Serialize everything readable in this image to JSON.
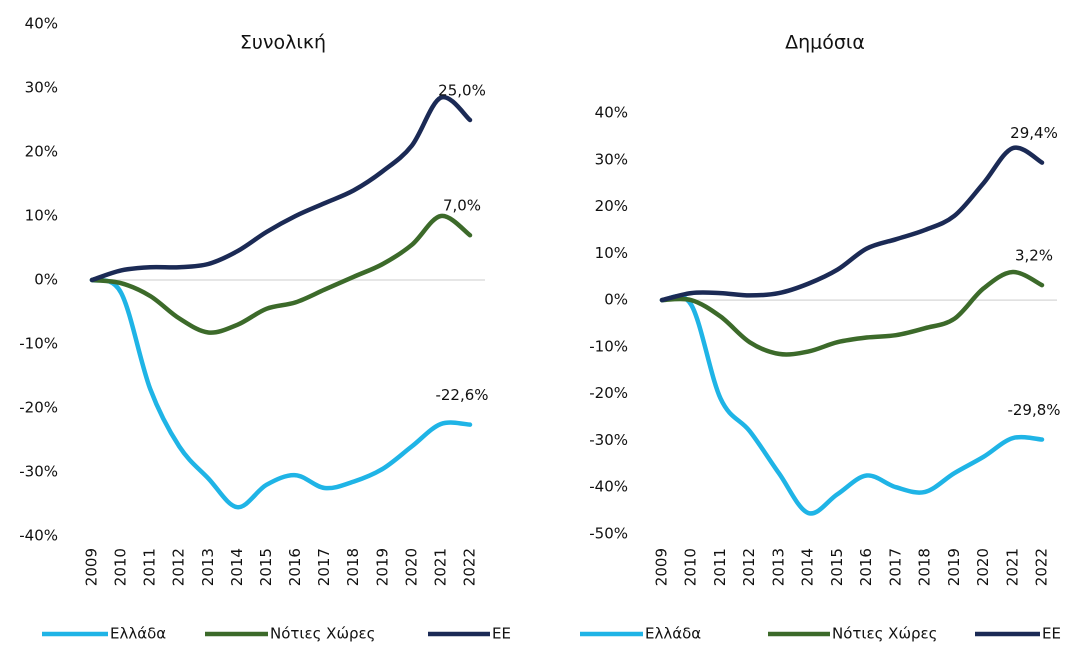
{
  "chart_data": [
    {
      "type": "line",
      "title": "Συνολική",
      "legend": "bottom",
      "categories": [
        "2009",
        "2010",
        "2011",
        "2012",
        "2013",
        "2014",
        "2015",
        "2016",
        "2017",
        "2018",
        "2019",
        "2020",
        "2021",
        "2022"
      ],
      "ylim": [
        -40,
        40
      ],
      "yticks": [
        {
          "value": -40,
          "label": "-40%"
        },
        {
          "value": -30,
          "label": "-30%"
        },
        {
          "value": -20,
          "label": "-20%"
        },
        {
          "value": -10,
          "label": "-10%"
        },
        {
          "value": 0,
          "label": "0%"
        },
        {
          "value": 10,
          "label": "10%"
        },
        {
          "value": 20,
          "label": "20%"
        },
        {
          "value": 30,
          "label": "30%"
        },
        {
          "value": 40,
          "label": "40%"
        }
      ],
      "series": [
        {
          "name": "Ελλάδα",
          "color": "#1fb4e6",
          "values": [
            0,
            -2,
            -17,
            -26,
            -31,
            -35.5,
            -32,
            -30.5,
            -32.5,
            -31.5,
            -29.5,
            -26,
            -22.5,
            -22.6
          ],
          "value_labels": [
            null,
            null,
            null,
            null,
            null,
            null,
            null,
            null,
            null,
            null,
            null,
            null,
            null,
            "-22,6%"
          ]
        },
        {
          "name": "Νότιες Χώρες",
          "color": "#3c6a2a",
          "values": [
            0,
            -0.5,
            -2.5,
            -6,
            -8.2,
            -7,
            -4.5,
            -3.5,
            -1.5,
            0.5,
            2.5,
            5.5,
            10,
            7.0
          ],
          "value_labels": [
            null,
            null,
            null,
            null,
            null,
            null,
            null,
            null,
            null,
            null,
            null,
            null,
            null,
            "7,0%"
          ]
        },
        {
          "name": "ΕΕ",
          "color": "#1b2a55",
          "values": [
            0,
            1.5,
            2,
            2,
            2.5,
            4.5,
            7.5,
            10,
            12,
            14,
            17,
            21,
            28.5,
            25.0
          ],
          "value_labels": [
            null,
            null,
            null,
            null,
            null,
            null,
            null,
            null,
            null,
            null,
            null,
            null,
            null,
            "25,0%"
          ]
        }
      ]
    },
    {
      "type": "line",
      "title": "Δημόσια",
      "legend": "bottom",
      "categories": [
        "2009",
        "2010",
        "2011",
        "2012",
        "2013",
        "2014",
        "2015",
        "2016",
        "2017",
        "2018",
        "2019",
        "2020",
        "2021",
        "2022"
      ],
      "ylim": [
        -50,
        40
      ],
      "yticks": [
        {
          "value": -50,
          "label": "-50%"
        },
        {
          "value": -40,
          "label": "-40%"
        },
        {
          "value": -30,
          "label": "-30%"
        },
        {
          "value": -20,
          "label": "-20%"
        },
        {
          "value": -10,
          "label": "-10%"
        },
        {
          "value": 0,
          "label": "0%"
        },
        {
          "value": 10,
          "label": "10%"
        },
        {
          "value": 20,
          "label": "20%"
        },
        {
          "value": 30,
          "label": "30%"
        },
        {
          "value": 40,
          "label": "40%"
        }
      ],
      "series": [
        {
          "name": "Ελλάδα",
          "color": "#1fb4e6",
          "values": [
            0,
            -1,
            -21,
            -28,
            -37,
            -45.5,
            -41.5,
            -37.5,
            -40,
            -41,
            -37,
            -33.5,
            -29.5,
            -29.8
          ],
          "value_labels": [
            null,
            null,
            null,
            null,
            null,
            null,
            null,
            null,
            null,
            null,
            null,
            null,
            null,
            "-29,8%"
          ]
        },
        {
          "name": "Νότιες Χώρες",
          "color": "#3c6a2a",
          "values": [
            0,
            0,
            -3.5,
            -9,
            -11.5,
            -11,
            -9,
            -8,
            -7.5,
            -6,
            -4,
            2.5,
            6,
            3.2
          ],
          "value_labels": [
            null,
            null,
            null,
            null,
            null,
            null,
            null,
            null,
            null,
            null,
            null,
            null,
            null,
            "3,2%"
          ]
        },
        {
          "name": "ΕΕ",
          "color": "#1b2a55",
          "values": [
            0,
            1.5,
            1.5,
            1,
            1.5,
            3.5,
            6.5,
            11,
            13,
            15,
            18,
            25,
            32.5,
            29.4
          ],
          "value_labels": [
            null,
            null,
            null,
            null,
            null,
            null,
            null,
            null,
            null,
            null,
            null,
            null,
            null,
            "29,4%"
          ]
        }
      ]
    }
  ]
}
